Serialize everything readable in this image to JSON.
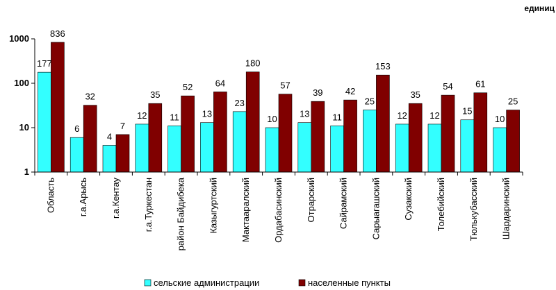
{
  "chart_data": {
    "type": "bar",
    "unit_label": "единиц",
    "y_scale": "log",
    "ylim": [
      1,
      1000
    ],
    "y_ticks": [
      {
        "value": 1,
        "label": "1"
      },
      {
        "value": 10,
        "label": "10"
      },
      {
        "value": 100,
        "label": "100"
      },
      {
        "value": 1000,
        "label": "1000"
      }
    ],
    "categories": [
      "Область",
      "г.а.Арысь",
      "г.а.Кентау",
      "г.а.Туркестан",
      "район Байдибека",
      "Казыгуртский",
      "Мактааралский",
      "Ордабасинский",
      "Отрарский",
      "Сайрамский",
      "Сарыагашский",
      "Сузакский",
      "Толебийский",
      "Тюлькубасский",
      "Шардаринский"
    ],
    "series": [
      {
        "name": "сельские администрации",
        "color": "#33ffff",
        "values": [
          177,
          6,
          4,
          12,
          11,
          13,
          23,
          10,
          13,
          11,
          25,
          12,
          12,
          15,
          10
        ],
        "labels": [
          "177",
          "6",
          "4",
          "12",
          "11",
          "13",
          "23",
          "10",
          "13",
          "11",
          "25",
          "12",
          "12",
          "15",
          "10"
        ]
      },
      {
        "name": "населенные пункты",
        "color": "#800000",
        "values": [
          836,
          32,
          7,
          35,
          52,
          64,
          180,
          57,
          39,
          42,
          153,
          35,
          54,
          61,
          25
        ],
        "labels": [
          "836",
          "32",
          "7",
          "35",
          "52",
          "64",
          "180",
          "57",
          "39",
          "42",
          "153",
          "35",
          "54",
          "61",
          "25"
        ]
      }
    ],
    "grid": false,
    "legend_position": "bottom"
  }
}
